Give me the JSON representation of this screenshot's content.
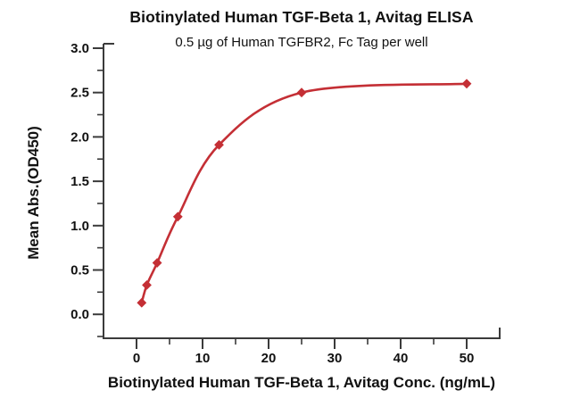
{
  "title": "Biotinylated Human TGF-Beta 1, Avitag ELISA",
  "subtitle": "0.5 µg of Human TGFBR2, Fc Tag per well",
  "chart_data": {
    "type": "scatter",
    "series_name": "Biotinylated Human TGF-Beta 1, Avitag",
    "x": [
      0.78,
      1.56,
      3.125,
      6.25,
      12.5,
      25,
      50
    ],
    "y": [
      0.13,
      0.33,
      0.58,
      1.1,
      1.91,
      2.5,
      2.6
    ],
    "fit": "4PL sigmoidal fit line through points",
    "marker": "diamond",
    "xlabel": "Biotinylated Human TGF-Beta 1, Avitag Conc. (ng/mL)",
    "ylabel": "Mean Abs.(OD450)",
    "xlim": [
      -5,
      55
    ],
    "ylim": [
      -0.27,
      3.0
    ],
    "x_ticks_major": [
      0,
      10,
      20,
      30,
      40,
      50
    ],
    "x_ticks_minor": [
      5,
      15,
      25,
      35,
      45
    ],
    "y_ticks_major": [
      0.0,
      0.5,
      1.0,
      1.5,
      2.0,
      2.5,
      3.0
    ],
    "y_ticks_minor": [
      -0.25,
      0.25,
      0.75,
      1.25,
      1.75,
      2.25,
      2.75
    ],
    "y_tick_decimals": 1,
    "grid": false,
    "legend_position": "none",
    "line_color": "#c42f35",
    "marker_color": "#c42f35",
    "axis_color": "#3b3b3b",
    "text_color": "#111111"
  }
}
